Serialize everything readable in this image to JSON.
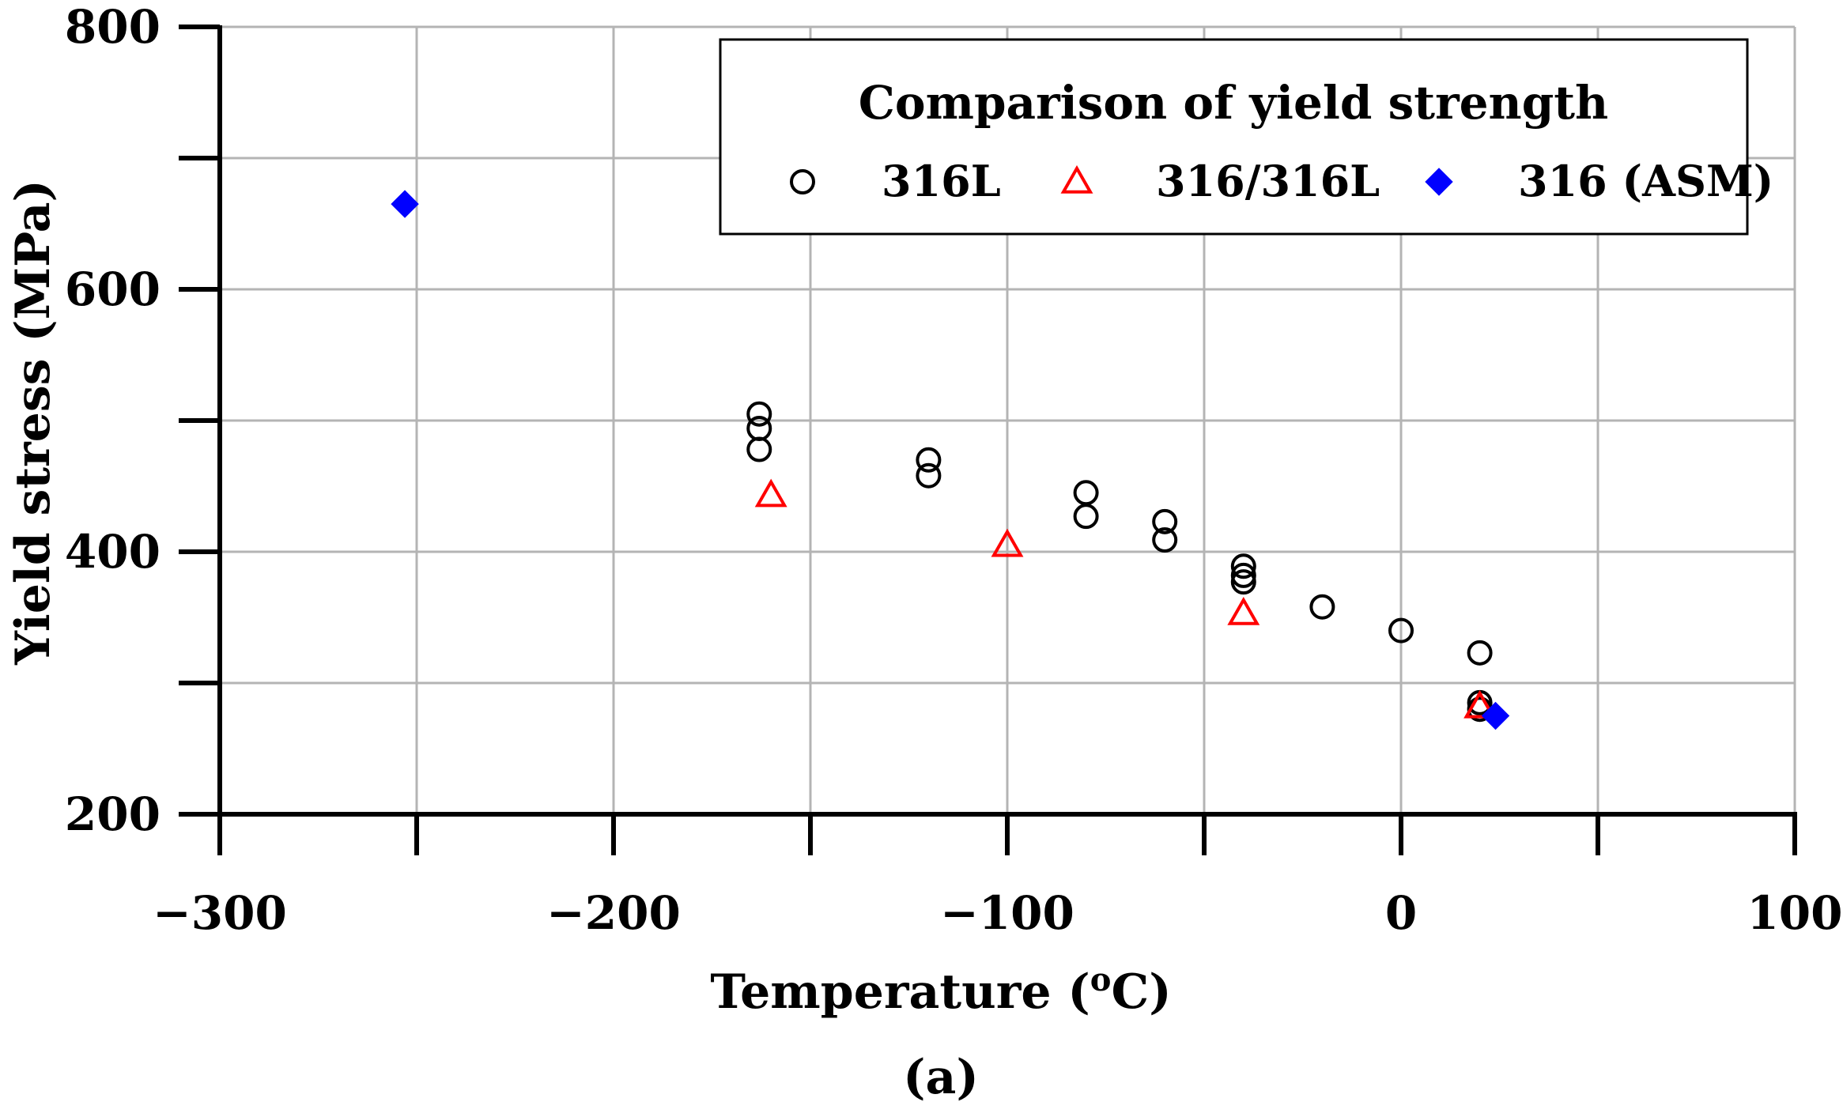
{
  "chart_data": {
    "type": "scatter",
    "title": "Comparison of yield strength",
    "xlabel_main": "Temperature (",
    "xlabel_sup": "o",
    "xlabel_end": "C)",
    "ylabel": "Yield stress (MPa)",
    "caption": "(a)",
    "xlim": [
      -300,
      100
    ],
    "ylim": [
      200,
      800
    ],
    "x_grid": [
      -300,
      -250,
      -200,
      -150,
      -100,
      -50,
      0,
      50,
      100
    ],
    "y_grid": [
      200,
      300,
      400,
      500,
      600,
      700,
      800
    ],
    "x_tick_labels": [
      {
        "value": -300,
        "text": "−300"
      },
      {
        "value": -200,
        "text": "−200"
      },
      {
        "value": -100,
        "text": "−100"
      },
      {
        "value": 0,
        "text": "0"
      },
      {
        "value": 100,
        "text": "100"
      }
    ],
    "y_tick_labels": [
      {
        "value": 800,
        "text": "800"
      },
      {
        "value": 600,
        "text": "600"
      },
      {
        "value": 400,
        "text": "400"
      },
      {
        "value": 200,
        "text": "200"
      }
    ],
    "grid": true,
    "legend_position": "top-right",
    "series": [
      {
        "name": "316L",
        "marker": "circle",
        "color": "#000000",
        "points": [
          [
            -163,
            505
          ],
          [
            -163,
            494
          ],
          [
            -163,
            478
          ],
          [
            -120,
            470
          ],
          [
            -120,
            458
          ],
          [
            -80,
            445
          ],
          [
            -80,
            427
          ],
          [
            -60,
            423
          ],
          [
            -60,
            409
          ],
          [
            -40,
            389
          ],
          [
            -40,
            382
          ],
          [
            -40,
            377
          ],
          [
            -20,
            358
          ],
          [
            0,
            340
          ],
          [
            20,
            323
          ],
          [
            20,
            285
          ],
          [
            20,
            280
          ]
        ]
      },
      {
        "name": "316/316L",
        "marker": "triangle",
        "color": "#ff0000",
        "points": [
          [
            -160,
            443
          ],
          [
            -100,
            405
          ],
          [
            -40,
            353
          ],
          [
            20,
            282
          ]
        ]
      },
      {
        "name": "316 (ASM)",
        "marker": "diamond",
        "color": "#0000ff",
        "points": [
          [
            -253,
            665
          ],
          [
            24,
            275
          ]
        ]
      }
    ]
  }
}
